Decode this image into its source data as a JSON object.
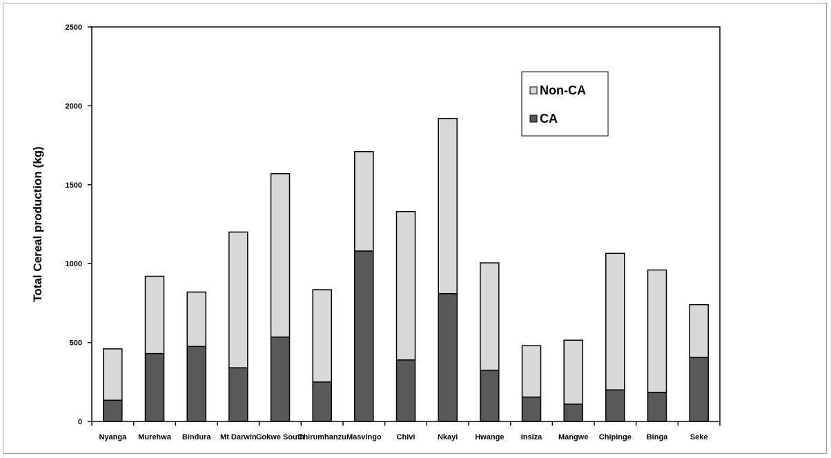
{
  "chart_data": {
    "type": "bar",
    "stacked": true,
    "categories": [
      "Nyanga",
      "Murehwa",
      "Bindura",
      "Mt Darwin",
      "Gokwe South",
      "Chirumhanzu",
      "Masvingo",
      "Chivi",
      "Nkayi",
      "Hwange",
      "Insiza",
      "Mangwe",
      "Chipinge",
      "Binga",
      "Seke"
    ],
    "series": [
      {
        "name": "CA",
        "color": "#595959",
        "values": [
          135,
          430,
          475,
          340,
          535,
          250,
          1080,
          390,
          810,
          325,
          155,
          110,
          200,
          185,
          405
        ]
      },
      {
        "name": "Non-CA",
        "color": "#d9d9d9",
        "values": [
          325,
          490,
          345,
          860,
          1035,
          585,
          630,
          940,
          1110,
          680,
          325,
          405,
          865,
          775,
          335
        ]
      }
    ],
    "xlabel": "",
    "ylabel": "Total Cereal production (kg)",
    "ylim": [
      0,
      2500
    ],
    "yticks": [
      "0",
      "500",
      "1000",
      "1500",
      "2000",
      "2500"
    ],
    "legend_position": "top-right",
    "legend_order": [
      "Non-CA",
      "CA"
    ],
    "grid": false
  }
}
